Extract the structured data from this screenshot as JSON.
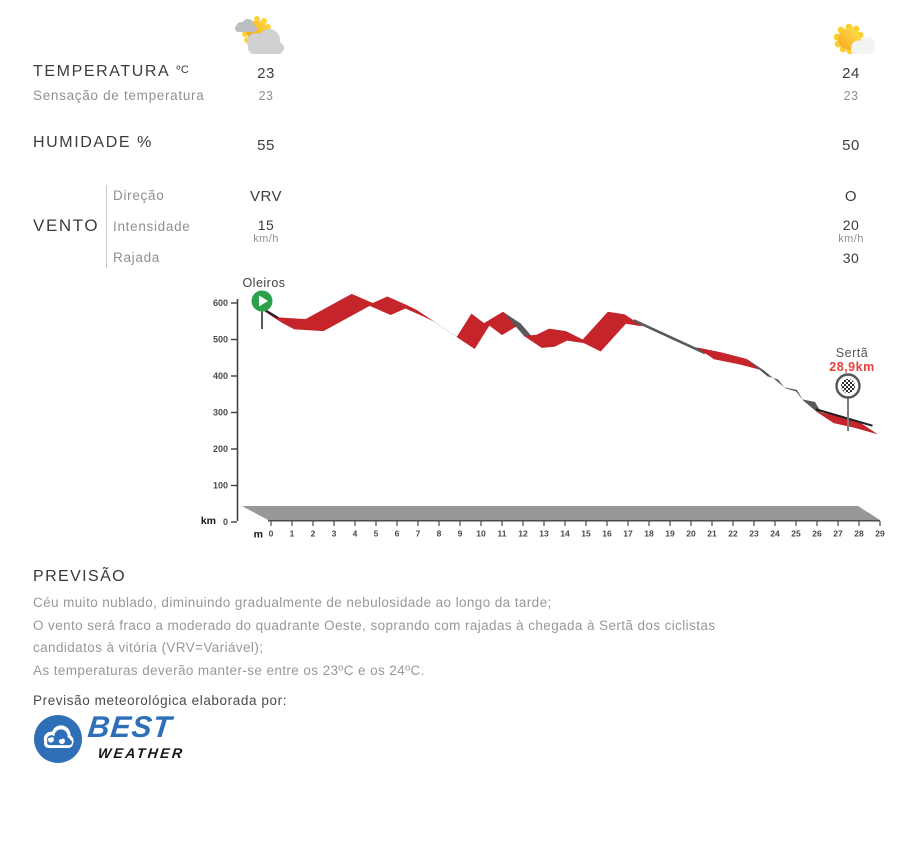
{
  "table": {
    "labels": {
      "temperature": "TEMPERATURA",
      "temperature_unit": "ºC",
      "feels_like": "Sensação de temperatura",
      "humidity": "HUMIDADE %",
      "wind": "VENTO",
      "wind_direction": "Direção",
      "wind_intensity": "Intensidade",
      "wind_gust": "Rajada"
    },
    "columns": [
      {
        "icon": "sun-behind-clouds",
        "temperature": "23",
        "feels_like": "23",
        "humidity": "55",
        "wind_direction": "VRV",
        "wind_speed": "15",
        "wind_speed_unit": "km/h",
        "wind_gust": ""
      },
      {
        "icon": "sun-with-small-cloud",
        "temperature": "24",
        "feels_like": "23",
        "humidity": "50",
        "wind_direction": "O",
        "wind_speed": "20",
        "wind_speed_unit": "km/h",
        "wind_gust": "30"
      }
    ]
  },
  "chart_data": {
    "type": "area",
    "title": "Elevation profile Oleiros - Sertã",
    "start_label": "Oleiros",
    "finish_label": "Sertã",
    "finish_distance": "28,9km",
    "units": {
      "bottom_left_of_y_axis": "km",
      "before_x_labels": "m"
    },
    "xlim": [
      0,
      29
    ],
    "ylim": [
      0,
      600
    ],
    "x_ticks": [
      0,
      1,
      2,
      3,
      4,
      5,
      6,
      7,
      8,
      9,
      10,
      11,
      12,
      13,
      14,
      15,
      16,
      17,
      18,
      19,
      20,
      21,
      22,
      23,
      24,
      25,
      26,
      27,
      28,
      29
    ],
    "y_ticks": [
      0,
      100,
      200,
      300,
      400,
      500,
      600
    ],
    "colors": {
      "climb": "#c5242b",
      "descent": "#58595b",
      "edge": "#1f1f1f",
      "base": "#97989a",
      "start_marker": "#2ca04a",
      "finish_distance_color": "#e8403c"
    },
    "segments": [
      {
        "color": "climb",
        "style": "band",
        "points": [
          [
            0,
            565
          ],
          [
            0.55,
            545
          ],
          [
            1.1,
            528
          ],
          [
            2.5,
            523
          ],
          [
            4.7,
            592
          ],
          [
            5.7,
            567
          ],
          [
            6.4,
            585
          ],
          [
            7.3,
            562
          ],
          [
            7.8,
            548
          ]
        ]
      },
      {
        "color": "descent",
        "style": "band",
        "points": [
          [
            7.8,
            548
          ],
          [
            9.7,
            474
          ]
        ]
      },
      {
        "color": "climb",
        "style": "band",
        "points": [
          [
            9.7,
            474
          ],
          [
            10.4,
            538
          ],
          [
            11.0,
            512
          ],
          [
            11.9,
            543
          ]
        ]
      },
      {
        "color": "descent",
        "style": "band",
        "points": [
          [
            11.9,
            543
          ],
          [
            12.9,
            477
          ]
        ]
      },
      {
        "color": "climb",
        "style": "band",
        "points": [
          [
            12.9,
            477
          ],
          [
            13.5,
            480
          ],
          [
            14.1,
            497
          ],
          [
            14.9,
            490
          ],
          [
            15.7,
            467
          ],
          [
            16.9,
            543
          ],
          [
            17.7,
            536
          ]
        ]
      },
      {
        "color": "descent",
        "style": "line",
        "points": [
          [
            17.7,
            536
          ],
          [
            21.1,
            446
          ]
        ]
      },
      {
        "color": "climb",
        "style": "band",
        "points": [
          [
            21.1,
            446
          ],
          [
            22.3,
            432
          ],
          [
            23.5,
            414
          ]
        ]
      },
      {
        "color": "descent",
        "style": "band",
        "points": [
          [
            23.5,
            414
          ],
          [
            24.5,
            366
          ],
          [
            25.0,
            358
          ],
          [
            25.3,
            336
          ],
          [
            25.9,
            329
          ],
          [
            26.2,
            300
          ],
          [
            26.8,
            271
          ]
        ]
      },
      {
        "color": "climb",
        "style": "band",
        "points": [
          [
            26.8,
            271
          ],
          [
            27.8,
            258
          ],
          [
            28.9,
            240
          ]
        ]
      }
    ],
    "edge_lines": [
      [
        [
          0,
          568
        ],
        [
          1.2,
          526
        ]
      ],
      [
        [
          26.8,
          276
        ],
        [
          29.5,
          231
        ]
      ]
    ]
  },
  "forecast": {
    "title": "PREVISÃO",
    "text": "Céu muito nublado, diminuindo gradualmente de nebulosidade ao longo da tarde;\nO vento será fraco a moderado do quadrante Oeste, soprando com rajadas à chegada à Sertã dos ciclistas\ncandidatos à vitória (VRV=Variável);\nAs temperaturas deverão manter-se entre os 23ºC e os 24ºC."
  },
  "credit": {
    "text": "Previsão meteorológica elaborada por:",
    "brand_top": "BEST",
    "brand_bottom": "WEATHER",
    "brand_blue": "#2e6fb7"
  }
}
